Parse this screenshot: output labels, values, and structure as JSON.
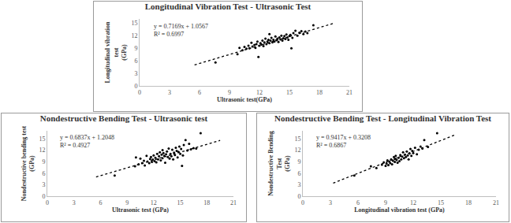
{
  "chart_data": [
    {
      "type": "scatter",
      "title": "Longitudinal Vibration Test - Ultrasonic Test",
      "x_label": "Ultrasonic test(GPa)",
      "y_label": "Longitudinal vibration\ntest\n(GPa)",
      "x": [
        7.6,
        9.8,
        10.0,
        10.3,
        10.5,
        10.7,
        10.9,
        11.0,
        11.2,
        11.3,
        11.5,
        11.6,
        11.7,
        11.8,
        11.9,
        12.0,
        12.1,
        12.2,
        12.3,
        12.4,
        12.5,
        12.6,
        12.7,
        12.8,
        12.9,
        13.0,
        13.0,
        13.1,
        13.2,
        13.3,
        13.4,
        13.5,
        13.6,
        13.7,
        13.8,
        13.9,
        14.0,
        14.1,
        14.2,
        14.3,
        14.4,
        14.5,
        14.6,
        14.7,
        14.8,
        14.9,
        15.0,
        15.1,
        15.2,
        15.3,
        15.4,
        15.6,
        15.8,
        16.0,
        16.2,
        16.4,
        16.6,
        16.8,
        17.4
      ],
      "values": [
        5.6,
        7.6,
        9.1,
        8.5,
        9.3,
        8.9,
        9.6,
        9.0,
        10.3,
        9.4,
        9.8,
        9.1,
        10.0,
        10.6,
        6.9,
        9.6,
        10.2,
        9.9,
        10.8,
        9.5,
        10.4,
        11.3,
        10.0,
        10.6,
        11.0,
        12.4,
        10.2,
        10.8,
        11.5,
        10.4,
        11.0,
        10.6,
        11.8,
        10.9,
        11.3,
        10.5,
        11.6,
        11.1,
        12.0,
        10.8,
        11.4,
        11.9,
        11.2,
        12.3,
        11.6,
        11.0,
        11.9,
        12.2,
        9.0,
        11.5,
        12.6,
        13.2,
        12.0,
        12.7,
        13.1,
        12.4,
        13.0,
        12.6,
        14.5
      ],
      "color": "#000000",
      "marker": "circle",
      "trendline": {
        "x": [
          5.5,
          19.5
        ],
        "values": [
          5.0,
          15.0
        ],
        "line_style": "dot",
        "color": "#000000"
      },
      "annotations": [
        "y = 0.7169x + 1.0567",
        "R² = 0.6997"
      ],
      "xlim": [
        0,
        21
      ],
      "xticks": [
        0,
        3,
        6,
        9,
        12,
        15,
        18,
        21
      ],
      "ylim": [
        0,
        16
      ],
      "yticks": [
        0,
        3,
        6,
        9,
        12,
        15
      ],
      "grid": false
    },
    {
      "type": "scatter",
      "title": "Nondestructive Bending Test - Ultrasonic test",
      "x_label": "Ultrasonic test (GPa)",
      "y_label": "Nondestructive bending test\n(GPa)",
      "x": [
        7.6,
        9.9,
        10.0,
        10.3,
        10.5,
        10.7,
        10.9,
        11.0,
        11.2,
        11.3,
        11.5,
        11.6,
        11.7,
        11.8,
        11.9,
        12.0,
        12.1,
        12.2,
        12.3,
        12.4,
        12.5,
        12.6,
        12.7,
        12.8,
        12.9,
        13.0,
        13.0,
        13.1,
        13.2,
        13.3,
        13.4,
        13.5,
        13.6,
        13.7,
        13.8,
        13.9,
        14.0,
        14.1,
        14.2,
        14.3,
        14.4,
        14.5,
        14.6,
        14.7,
        14.8,
        14.9,
        15.0,
        15.1,
        15.2,
        15.3,
        15.4,
        15.6,
        15.8,
        16.0,
        16.2,
        16.5,
        16.8,
        17.3
      ],
      "values": [
        5.4,
        7.8,
        10.1,
        8.3,
        9.8,
        8.6,
        9.2,
        8.0,
        10.5,
        9.0,
        8.6,
        9.7,
        10.2,
        8.9,
        9.5,
        10.6,
        9.1,
        10.0,
        8.8,
        11.0,
        9.6,
        10.4,
        11.4,
        9.3,
        10.8,
        12.0,
        9.9,
        11.2,
        10.5,
        8.7,
        10.9,
        11.6,
        10.2,
        12.4,
        9.8,
        11.0,
        10.4,
        12.1,
        9.6,
        11.3,
        10.7,
        12.6,
        11.8,
        10.1,
        11.5,
        12.9,
        11.0,
        12.3,
        7.9,
        10.6,
        13.3,
        14.6,
        11.9,
        13.6,
        12.2,
        12.5,
        12.4,
        16.4
      ],
      "color": "#000000",
      "marker": "circle",
      "trendline": {
        "x": [
          5.5,
          19.5
        ],
        "values": [
          5.0,
          14.5
        ],
        "line_style": "dot",
        "color": "#000000"
      },
      "annotations": [
        "y = 0.6837x + 1.2048",
        "R² = 0.4927"
      ],
      "xlim": [
        0,
        21
      ],
      "xticks": [
        0,
        3,
        6,
        9,
        12,
        15,
        18,
        21
      ],
      "ylim": [
        0,
        17
      ],
      "yticks": [
        0,
        3,
        6,
        9,
        12,
        15
      ],
      "grid": false
    },
    {
      "type": "scatter",
      "title": "Nondestructive Bending Test - Longitudinal Vibration Test",
      "x_label": "Longitudinal vibration test (GPa)",
      "y_label": "Nondestructive Bending\nTest\n(GPa)",
      "x": [
        5.6,
        7.4,
        8.0,
        8.6,
        8.8,
        9.0,
        9.1,
        9.2,
        9.3,
        9.4,
        9.5,
        9.6,
        9.7,
        9.8,
        9.9,
        10.0,
        10.0,
        10.1,
        10.2,
        10.3,
        10.4,
        10.5,
        10.6,
        10.7,
        10.8,
        10.9,
        11.0,
        11.1,
        11.2,
        11.3,
        11.4,
        11.5,
        11.6,
        11.7,
        11.8,
        11.9,
        12.0,
        12.2,
        12.4,
        12.6,
        12.8,
        13.0,
        13.2,
        13.6,
        14.6
      ],
      "values": [
        5.4,
        7.8,
        7.3,
        8.2,
        8.8,
        7.9,
        8.5,
        9.3,
        8.1,
        9.0,
        8.6,
        9.6,
        8.3,
        9.2,
        10.2,
        8.9,
        9.7,
        10.5,
        9.4,
        8.7,
        10.0,
        9.1,
        10.7,
        9.6,
        10.3,
        11.4,
        9.9,
        10.8,
        10.2,
        11.6,
        10.6,
        9.6,
        11.1,
        12.3,
        10.5,
        11.8,
        11.2,
        12.6,
        10.9,
        12.1,
        12.9,
        12.4,
        14.6,
        12.8,
        16.4
      ],
      "color": "#000000",
      "marker": "circle",
      "trendline": {
        "x": [
          3.3,
          16.5
        ],
        "values": [
          3.4,
          15.9
        ],
        "line_style": "dot",
        "color": "#000000"
      },
      "annotations": [
        "y = 0.9417x + 0.3208",
        "R² = 0.6867"
      ],
      "xlim": [
        0,
        21
      ],
      "xticks": [
        0,
        3,
        6,
        9,
        12,
        15,
        18,
        21
      ],
      "ylim": [
        0,
        17
      ],
      "yticks": [
        0,
        3,
        6,
        9,
        12,
        15
      ],
      "grid": false
    }
  ]
}
